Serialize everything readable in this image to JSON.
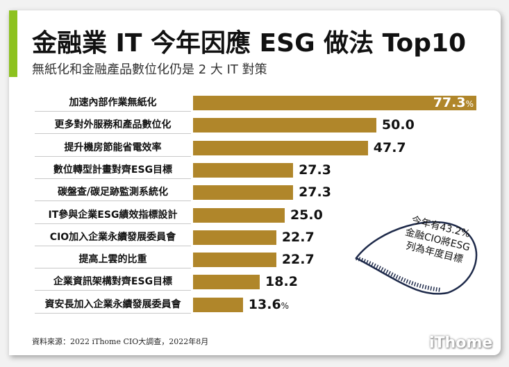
{
  "header": {
    "title": "金融業 IT 今年因應 ESG 做法 Top10",
    "subtitle": "無紙化和金融產品數位化仍是 2 大 IT 對策"
  },
  "chart_data": {
    "type": "bar",
    "orientation": "horizontal",
    "unit": "%",
    "categories": [
      "加速內部作業無紙化",
      "更多對外服務和產品數位化",
      "提升機房節能省電效率",
      "數位轉型計畫對齊ESG目標",
      "碳盤查/碳足跡監測系統化",
      "IT參與企業ESG績效指標設計",
      "CIO加入企業永續發展委員會",
      "提高上雲的比重",
      "企業資訊架構對齊ESG目標",
      "資安長加入企業永續發展委員會"
    ],
    "values": [
      77.3,
      50.0,
      47.7,
      27.3,
      27.3,
      25.0,
      22.7,
      22.7,
      18.2,
      13.6
    ],
    "value_labels": [
      "77.3",
      "50.0",
      "47.7",
      "27.3",
      "27.3",
      "25.0",
      "22.7",
      "22.7",
      "18.2",
      "13.6"
    ],
    "xlim": [
      0,
      77.3
    ],
    "grid": false,
    "bar_color": "#b0862a"
  },
  "callout": {
    "lines": [
      "今年有43.2%",
      "金融CIO將ESG",
      "列為年度目標"
    ]
  },
  "footer": {
    "source": "資料來源：2022 iThome CIO大調查，2022年8月",
    "logo": "iThome"
  },
  "colors": {
    "accent": "#8dc21f",
    "bar": "#b0862a"
  }
}
